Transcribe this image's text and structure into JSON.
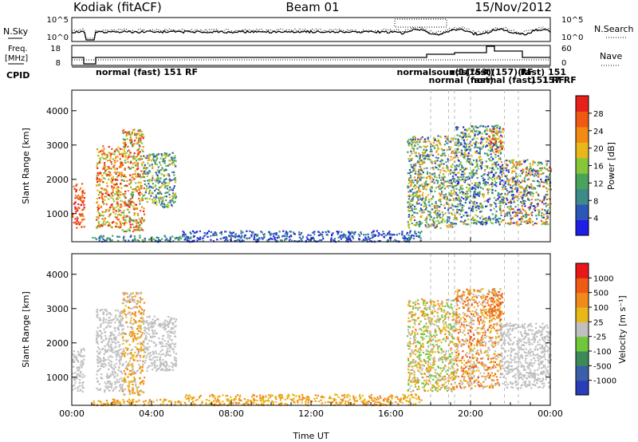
{
  "header": {
    "station": "Kodiak (fitACF)",
    "beam": "Beam 01",
    "date": "15/Nov/2012"
  },
  "noise_panel": {
    "left_label": "N.Sky",
    "right_label": "N.Search",
    "left_ticks": [
      "10^5",
      "10^0"
    ],
    "right_ticks": [
      "10^5",
      "10^0"
    ]
  },
  "freq_panel": {
    "left_label_1": "Freq.",
    "left_label_2": "[MHz]",
    "right_label": "Nave",
    "left_ticks": [
      "18",
      "8"
    ],
    "right_ticks": [
      "60",
      "0"
    ]
  },
  "cpid": {
    "label": "CPID",
    "segments_row1": [
      {
        "t": 1.2,
        "text": "normal (fast) 151 RF"
      },
      {
        "t": 16.3,
        "text": "normalsounds(fast)"
      },
      {
        "t": 19.0,
        "text": "r(1(153)(157)(fast) 151"
      },
      {
        "t": 22.5,
        "text": "RF"
      }
    ],
    "segments_row2": [
      {
        "t": 17.9,
        "text": "normal (fast)"
      },
      {
        "t": 20.0,
        "text": "normal (fast)"
      },
      {
        "t": 23.0,
        "text": "151 RF"
      },
      {
        "t": 23.6,
        "text": "157 RF"
      }
    ]
  },
  "power_panel": {
    "ylabel": "Slant Range [km]",
    "yticks": [
      1000,
      2000,
      3000,
      4000
    ],
    "colorbar_label": "Power [dB]",
    "colorbar_ticks": [
      "4",
      "8",
      "12",
      "16",
      "20",
      "24",
      "28"
    ]
  },
  "velocity_panel": {
    "ylabel": "Slant Range [km]",
    "yticks": [
      1000,
      2000,
      3000,
      4000
    ],
    "colorbar_label": "Velocity [m s⁻¹]",
    "colorbar_ticks": [
      "-1000",
      "-500",
      "-100",
      "-25",
      "25",
      "100",
      "500",
      "1000"
    ]
  },
  "xaxis": {
    "label": "Time UT",
    "ticks": [
      "00:00",
      "04:00",
      "08:00",
      "12:00",
      "16:00",
      "20:00",
      "00:00"
    ]
  },
  "chart_data": {
    "type": "heatmap",
    "x_range_hours": [
      0,
      24
    ],
    "y_range_km": [
      180,
      4600
    ],
    "x_tick_hours": [
      0,
      4,
      8,
      12,
      16,
      20,
      24
    ],
    "power_colors": [
      "#1e1ee6",
      "#2c56b8",
      "#3c8a8a",
      "#4aa35a",
      "#86c63a",
      "#e8b81a",
      "#f28a14",
      "#ee5a12",
      "#e8201a"
    ],
    "velocity_colors": [
      "#2a3db8",
      "#3a5fa8",
      "#3c8a5a",
      "#6ec83a",
      "#c0c0c0",
      "#e8b81a",
      "#f08a1a",
      "#ef5a14",
      "#e81818"
    ],
    "scatter_regions": [
      {
        "t0": 0.0,
        "t1": 0.6,
        "r0": 600,
        "r1": 1900,
        "power_idx": [
          6,
          8
        ],
        "vel_idx": [
          4,
          4
        ]
      },
      {
        "t0": 1.2,
        "t1": 2.5,
        "r0": 600,
        "r1": 3000,
        "power_idx": [
          4,
          8
        ],
        "vel_idx": [
          4,
          4
        ]
      },
      {
        "t0": 2.5,
        "t1": 3.6,
        "r0": 500,
        "r1": 3500,
        "power_idx": [
          3,
          8
        ],
        "vel_idx": [
          4,
          6
        ]
      },
      {
        "t0": 3.6,
        "t1": 5.2,
        "r0": 1200,
        "r1": 2800,
        "power_idx": [
          1,
          5
        ],
        "vel_idx": [
          4,
          4
        ]
      },
      {
        "t0": 1.0,
        "t1": 5.5,
        "r0": 200,
        "r1": 380,
        "power_idx": [
          1,
          3
        ],
        "vel_idx": [
          5,
          6
        ]
      },
      {
        "t0": 5.5,
        "t1": 17.5,
        "r0": 200,
        "r1": 520,
        "power_idx": [
          0,
          2
        ],
        "vel_idx": [
          5,
          6
        ]
      },
      {
        "t0": 16.8,
        "t1": 19.2,
        "r0": 600,
        "r1": 3300,
        "power_idx": [
          1,
          6
        ],
        "vel_idx": [
          3,
          6
        ]
      },
      {
        "t0": 19.2,
        "t1": 21.5,
        "r0": 700,
        "r1": 3600,
        "power_idx": [
          0,
          5
        ],
        "vel_idx": [
          4,
          7
        ]
      },
      {
        "t0": 21.5,
        "t1": 24.0,
        "r0": 700,
        "r1": 2600,
        "power_idx": [
          0,
          7
        ],
        "vel_idx": [
          4,
          4
        ]
      },
      {
        "t0": 20.9,
        "t1": 21.6,
        "r0": 2800,
        "r1": 3500,
        "power_idx": [
          4,
          8
        ],
        "vel_idx": [
          6,
          7
        ]
      }
    ]
  }
}
